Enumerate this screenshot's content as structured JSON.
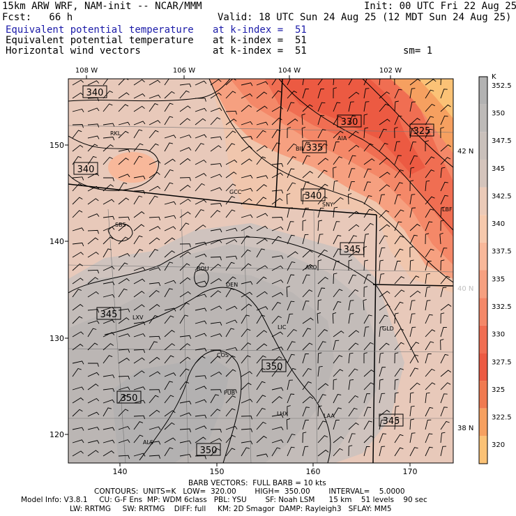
{
  "header": {
    "model_title": "15km ARW WRF, NAM-init -- NCAR/MMM",
    "init_time": "Init: 00 UTC Fri 22 Aug 25",
    "forecast_hour": "Fcst:   66 h",
    "valid_time": "Valid: 18 UTC Sun 24 Aug 25 (12 MDT Sun 24 Aug 25)",
    "fields": [
      {
        "name": "Equivalent potential temperature",
        "level": "at k-index =  51",
        "color": "#1a1aa8"
      },
      {
        "name": "Equivalent potential temperature",
        "level": "at k-index =  51",
        "color": "#000000"
      },
      {
        "name": "Horizontal wind vectors",
        "level": "at k-index =  51",
        "color": "#000000"
      }
    ],
    "smoothing": "sm= 1"
  },
  "map": {
    "lon_labels": [
      "108 W",
      "106 W",
      "104 W",
      "102 W"
    ],
    "lat_labels": [
      "42 N",
      "40 N",
      "38 N"
    ],
    "grid_x_labels": [
      "140",
      "150",
      "160",
      "170"
    ],
    "grid_y_labels": [
      "150",
      "140",
      "130",
      "120"
    ],
    "stations": [
      "RKL",
      "BIL",
      "AIA",
      "GCC",
      "SNY",
      "LBF",
      "SBS",
      "BOU",
      "AKO",
      "DEN",
      "LXV",
      "LIC",
      "GLD",
      "COS",
      "PUB",
      "LHX",
      "LAA",
      "ALS"
    ],
    "contour_labels": [
      "340",
      "330",
      "325",
      "335",
      "340",
      "340",
      "345",
      "345",
      "350",
      "350",
      "345",
      "350"
    ]
  },
  "colorbar": {
    "unit": "K",
    "levels": [
      "352.5",
      "350",
      "347.5",
      "345",
      "342.5",
      "340",
      "337.5",
      "335",
      "332.5",
      "330",
      "327.5",
      "325",
      "322.5",
      "320"
    ],
    "colors": [
      "#b2b2b2",
      "#bdbab8",
      "#c9c0bb",
      "#d4c4bc",
      "#ebcab8",
      "#f6c9ad",
      "#f8b89a",
      "#f6a080",
      "#f48868",
      "#f06e52",
      "#ec5a42",
      "#f07a50",
      "#f6a060",
      "#fbc276"
    ]
  },
  "footer": {
    "barb_line": "BARB VECTORS:  FULL BARB = 10 kts",
    "contours_line": "CONTOURS:  UNITS=K   LOW=  320.00        HIGH=  350.00        INTERVAL=    5.0000",
    "model_info_line1": "Model Info: V3.8.1     CU: G-F Ens  MP: WDM 6class   PBL: YSU        SF: Noah LSM      15 km    51 levels    90 sec",
    "model_info_line2": "LW: RRTMG     SW: RRTMG    DIFF: full     KM: 2D Smagor  DAMP: Rayleigh3   SFLAY: MM5"
  }
}
